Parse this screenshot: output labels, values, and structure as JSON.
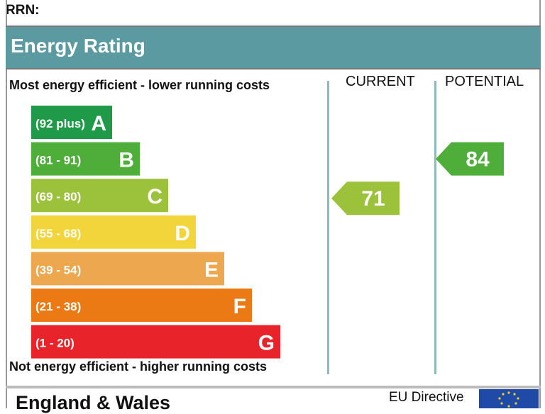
{
  "rrn_label": "RRN:",
  "header": {
    "title": "Energy Rating"
  },
  "chart_data": {
    "type": "bar",
    "categories": [
      "A",
      "B",
      "C",
      "D",
      "E",
      "F",
      "G"
    ],
    "bands": [
      {
        "range": "(92 plus)",
        "letter": "A",
        "color": "#1f9a48"
      },
      {
        "range": "(81 - 91)",
        "letter": "B",
        "color": "#4fae3a"
      },
      {
        "range": "(69 - 80)",
        "letter": "C",
        "color": "#9cc23c"
      },
      {
        "range": "(55 - 68)",
        "letter": "D",
        "color": "#f2d53a"
      },
      {
        "range": "(39 - 54)",
        "letter": "E",
        "color": "#eda74f"
      },
      {
        "range": "(21 - 38)",
        "letter": "F",
        "color": "#eb7a14"
      },
      {
        "range": "(1 - 20)",
        "letter": "G",
        "color": "#e8242a"
      }
    ],
    "top_caption": "Most energy efficient - lower running costs",
    "bottom_caption": "Not energy efficient - higher running costs",
    "columns": [
      "CURRENT",
      "POTENTIAL"
    ],
    "current": {
      "value": 71,
      "band": "C",
      "color": "#9cc23c"
    },
    "potential": {
      "value": 84,
      "band": "B",
      "color": "#4fae3a"
    }
  },
  "footer": {
    "region": "England & Wales",
    "directive": "EU Directive"
  }
}
